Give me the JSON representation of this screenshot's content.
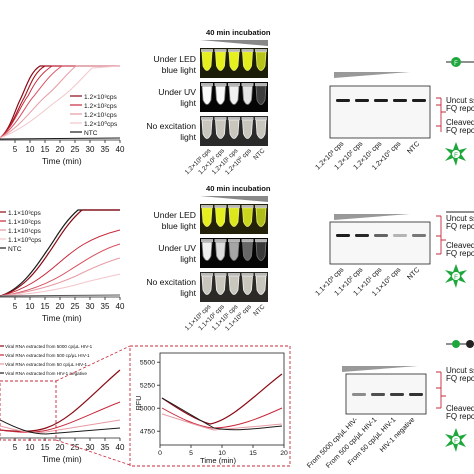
{
  "row1": {
    "chart": {
      "xaxis_title": "Time (min)",
      "xticks": [
        "5",
        "10",
        "15",
        "20",
        "25",
        "30",
        "35",
        "40"
      ],
      "legend": [
        "1.2×10³cps",
        "1.2×10²cps",
        "1.2×10¹cps",
        "1.2×10⁰cps",
        "NTC"
      ]
    },
    "tubes": {
      "heading": "40 min incubation",
      "label_led": [
        "Under LED",
        "blue light"
      ],
      "label_uv": [
        "Under UV",
        "light"
      ],
      "label_noexc": [
        "No excitation",
        "light"
      ],
      "samples": [
        "1.2×10³ cps",
        "1.2×10² cps",
        "1.2×10¹ cps",
        "1.2×10⁰ cps",
        "NTC"
      ]
    },
    "gel": {
      "samples": [
        "1.2×10³ cps",
        "1.2×10² cps",
        "1.2×10¹ cps",
        "1.2×10⁰ cps",
        "NTC"
      ],
      "uncut": [
        "Uncut ss",
        "FQ reporter"
      ],
      "cleaved": [
        "Cleaved",
        "FQ repor"
      ]
    }
  },
  "row2": {
    "chart": {
      "xaxis_title": "Time (min)",
      "xticks": [
        "5",
        "10",
        "15",
        "20",
        "25",
        "30",
        "35",
        "40"
      ],
      "legend": [
        "1.1×10³cps",
        "1.1×10²cps",
        "1.1×10¹cps",
        "1.1×10⁰cps",
        "NTC"
      ]
    },
    "tubes": {
      "heading": "40 min incubation",
      "label_led": [
        "Under LED",
        "blue light"
      ],
      "label_uv": [
        "Under UV",
        "light"
      ],
      "label_noexc": [
        "No excitation",
        "light"
      ],
      "samples": [
        "1.1×10³ cps",
        "1.1×10² cps",
        "1.1×10¹ cps",
        "1.1×10⁰ cps",
        "NTC"
      ]
    },
    "gel": {
      "samples": [
        "1.1×10³ cps",
        "1.1×10² cps",
        "1.1×10¹ cps",
        "1.1×10⁰ cps",
        "NTC"
      ],
      "uncut": [
        "Uncut ss",
        "FQ repor"
      ],
      "cleaved": [
        "Cleaved",
        "FQ repor"
      ]
    }
  },
  "row3": {
    "chart": {
      "xaxis_title": "Time (min)",
      "xticks": [
        "5",
        "10",
        "15",
        "20",
        "25",
        "30",
        "35",
        "40"
      ],
      "legend": [
        "Viral RNA extracted from 5000 cp/μL HIV-1",
        "Viral RNA extracted from 500 cp/μL HIV-1",
        "Viral RNA extracted from 50 cp/μL HIV-1",
        "Viral RNA extracted from HIV-1 negative"
      ]
    },
    "inset": {
      "ylabel": "RFU",
      "yticks": [
        "5500",
        "5250",
        "5000",
        "4750"
      ],
      "xticks": [
        "0",
        "5",
        "10",
        "15",
        "20"
      ],
      "xaxis_title": "Time (min)"
    },
    "gel": {
      "samples": [
        "From 5000 cp/μL HIV-",
        "From 500 cp/μL HIV-1",
        "From 50 cp/μL HIV-1",
        "HIV-1 negative"
      ],
      "uncut": [
        "Uncut ss",
        "FQ repor"
      ],
      "cleaved": [
        "Cleaved",
        "FQ repor"
      ]
    }
  },
  "colors": {
    "dark_red": "#8b0a14",
    "red": "#c8283a",
    "pink": "#e79aa3",
    "light_pink": "#f3c6cb",
    "ntc": "#1a1a1a",
    "green_burst": "#1ea83c"
  }
}
